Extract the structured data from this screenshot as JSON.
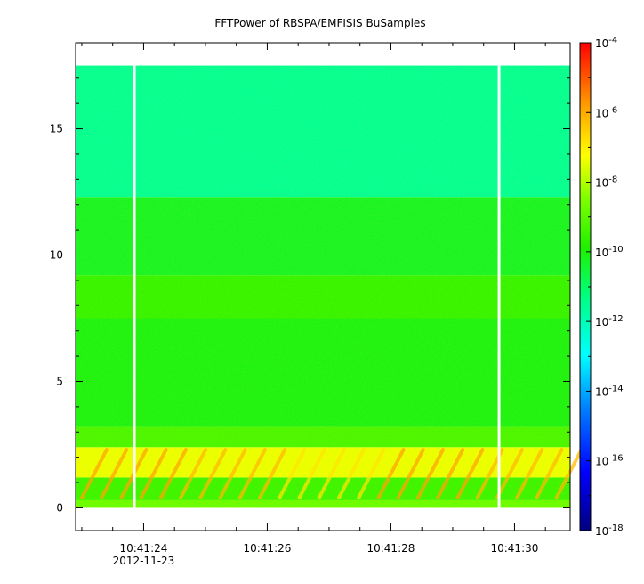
{
  "chart_data": {
    "type": "heatmap",
    "title": "FFTPower of RBSPA/EMFISIS  BuSamples",
    "xlabel": "",
    "ylabel": "",
    "x_ticks": [
      {
        "time": "10:41:24",
        "date": "2012-11-23"
      },
      {
        "time": "10:41:26",
        "date": ""
      },
      {
        "time": "10:41:28",
        "date": ""
      },
      {
        "time": "10:41:30",
        "date": ""
      }
    ],
    "x_range_seconds": [
      22.9,
      30.9
    ],
    "y_ticks": [
      0,
      5,
      10,
      15
    ],
    "ylim": [
      -0.9,
      18.4
    ],
    "data_y_range": [
      0,
      17.5
    ],
    "gaps_seconds": [
      23.85,
      29.75
    ],
    "colorbar": {
      "scale": "log",
      "range": [
        1e-18,
        0.0001
      ],
      "tick_bases": [
        "10",
        "10",
        "10",
        "10",
        "10",
        "10",
        "10",
        "10"
      ],
      "tick_exponents": [
        "-4",
        "-6",
        "-8",
        "-10",
        "-12",
        "-14",
        "-16",
        "-18"
      ],
      "tick_values": [
        -4,
        -6,
        -8,
        -10,
        -12,
        -14,
        -16,
        -18
      ]
    },
    "bands": [
      {
        "y_from": 0,
        "y_to": 0.3,
        "level": -8.8
      },
      {
        "y_from": 0.3,
        "y_to": 1.2,
        "level": -9.5
      },
      {
        "y_from": 1.2,
        "y_to": 2.4,
        "level": -7.4
      },
      {
        "y_from": 2.4,
        "y_to": 3.2,
        "level": -9.3
      },
      {
        "y_from": 3.2,
        "y_to": 7.5,
        "level": -10.1
      },
      {
        "y_from": 7.5,
        "y_to": 9.2,
        "level": -9.6
      },
      {
        "y_from": 9.2,
        "y_to": 12.3,
        "level": -10.3
      },
      {
        "y_from": 12.3,
        "y_to": 17.5,
        "level": -11.6
      }
    ]
  }
}
